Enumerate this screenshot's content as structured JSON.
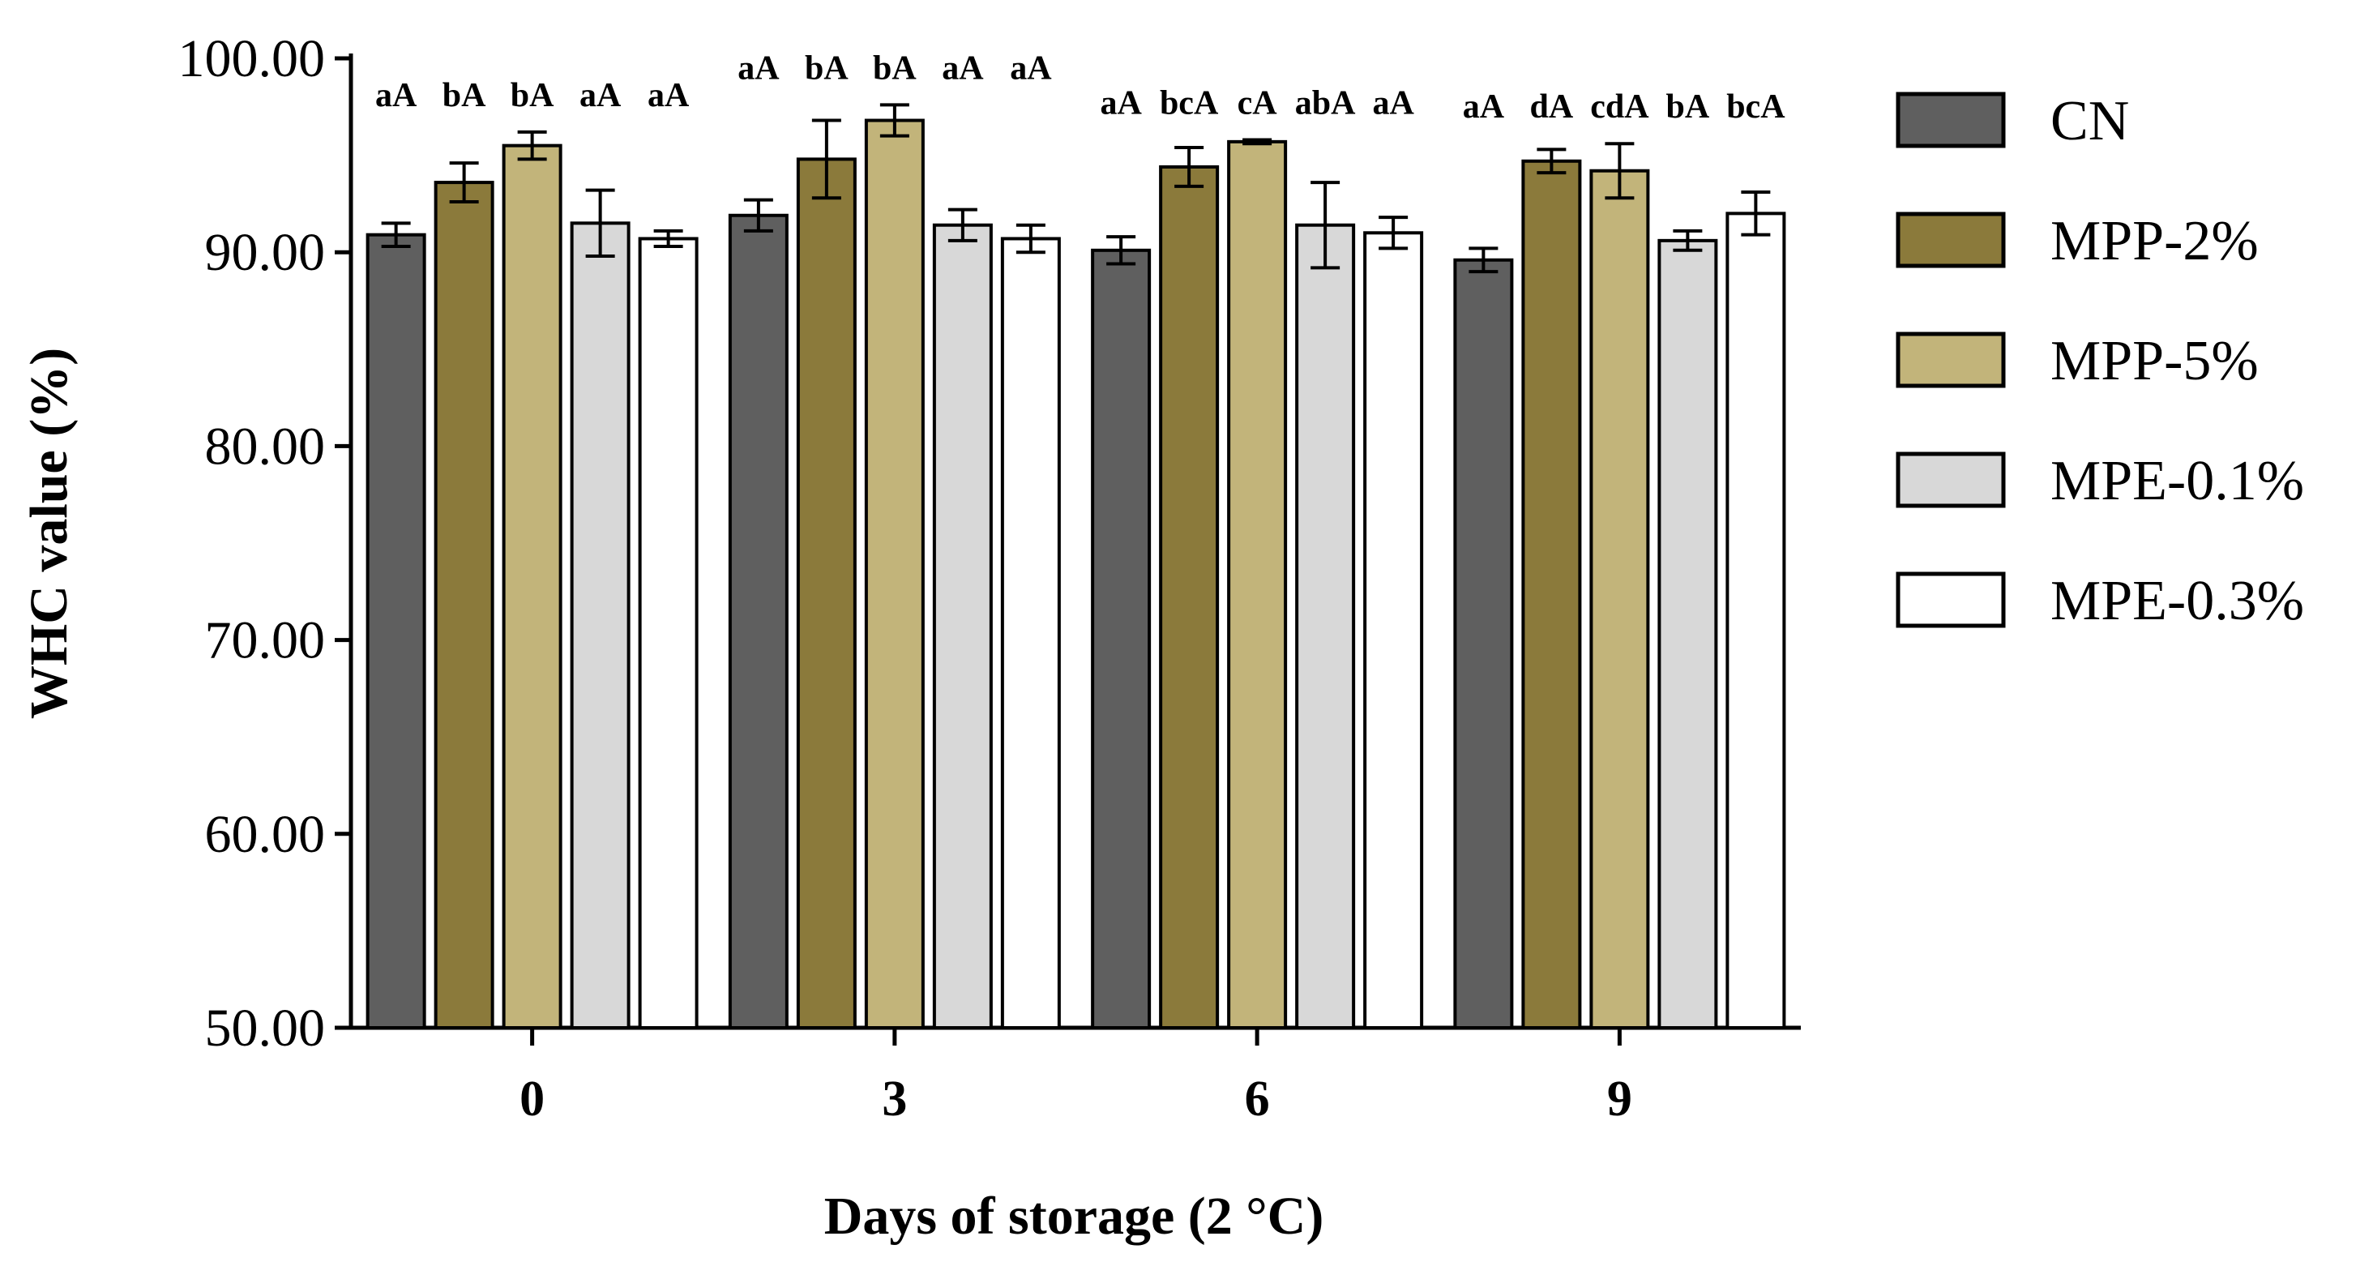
{
  "chart_data": {
    "type": "bar",
    "title": "",
    "xlabel": "Days of storage (2 °C)",
    "ylabel": "WHC value (%)",
    "ylim": [
      50,
      100
    ],
    "yticks": [
      "50.00",
      "60.00",
      "70.00",
      "80.00",
      "90.00",
      "100.00"
    ],
    "categories": [
      "0",
      "3",
      "6",
      "9"
    ],
    "legend_position": "right",
    "series": [
      {
        "name": "CN",
        "color": "#5f5f5f",
        "values": [
          90.9,
          91.9,
          90.1,
          89.6
        ],
        "errors": [
          0.6,
          0.8,
          0.7,
          0.6
        ],
        "labels": [
          "aA",
          "aA",
          "aA",
          "aA"
        ]
      },
      {
        "name": "MPP-2%",
        "color": "#8b7a3b",
        "values": [
          93.6,
          94.8,
          94.4,
          94.7
        ],
        "errors": [
          1.0,
          2.0,
          1.0,
          0.6
        ],
        "labels": [
          "bA",
          "bA",
          "bcA",
          "dA"
        ]
      },
      {
        "name": "MPP-5%",
        "color": "#c2b47a",
        "values": [
          95.5,
          96.8,
          95.7,
          94.2
        ],
        "errors": [
          0.7,
          0.8,
          0.1,
          1.4
        ],
        "labels": [
          "bA",
          "bA",
          "cA",
          "cdA"
        ]
      },
      {
        "name": "MPE-0.1%",
        "color": "#d8d8d8",
        "values": [
          91.5,
          91.4,
          91.4,
          90.6
        ],
        "errors": [
          1.7,
          0.8,
          2.2,
          0.5
        ],
        "labels": [
          "aA",
          "aA",
          "abA",
          "bA"
        ]
      },
      {
        "name": "MPE-0.3%",
        "color": "#ffffff",
        "values": [
          90.7,
          90.7,
          91.0,
          92.0
        ],
        "errors": [
          0.4,
          0.7,
          0.8,
          1.1
        ],
        "labels": [
          "aA",
          "aA",
          "aA",
          "bcA"
        ]
      }
    ]
  }
}
